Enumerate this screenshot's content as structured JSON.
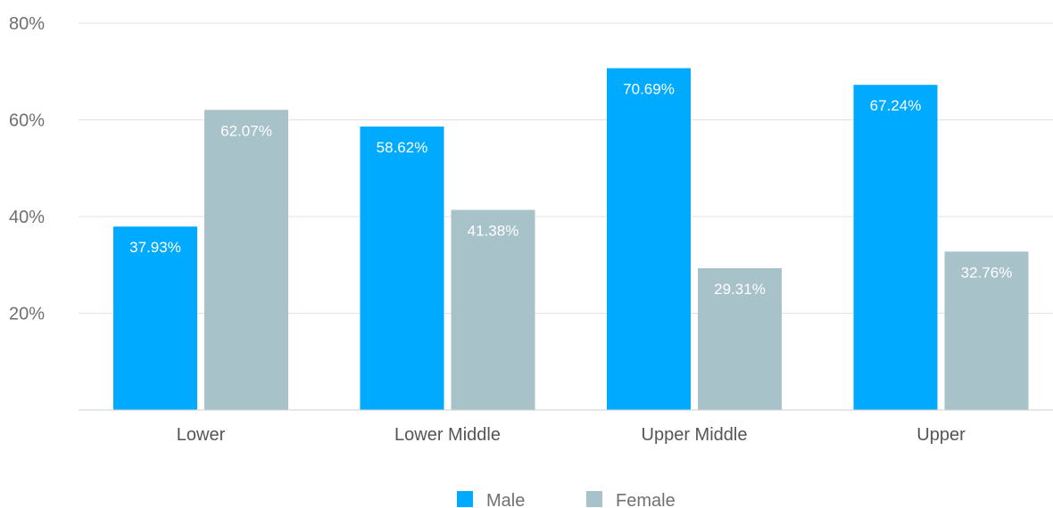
{
  "colors": {
    "male": "#00aaff",
    "female": "#a8c2ca",
    "grid": "#e3e3e3",
    "axis": "#cfcfcf"
  },
  "chart_data": {
    "type": "bar",
    "categories": [
      "Lower",
      "Lower Middle",
      "Upper Middle",
      "Upper"
    ],
    "series": [
      {
        "name": "Male",
        "values": [
          37.93,
          58.62,
          70.69,
          67.24
        ],
        "labels": [
          "37.93%",
          "58.62%",
          "70.69%",
          "67.24%"
        ],
        "color": "#00aaff"
      },
      {
        "name": "Female",
        "values": [
          62.07,
          41.38,
          29.31,
          32.76
        ],
        "labels": [
          "62.07%",
          "41.38%",
          "29.31%",
          "32.76%"
        ],
        "color": "#a8c2ca"
      }
    ],
    "ylim": [
      0,
      80
    ],
    "yticks": [
      20,
      40,
      60,
      80
    ],
    "ytick_labels": [
      "20%",
      "40%",
      "60%",
      "80%"
    ],
    "grid": true,
    "legend_position": "bottom-center",
    "title": "",
    "xlabel": "",
    "ylabel": ""
  }
}
